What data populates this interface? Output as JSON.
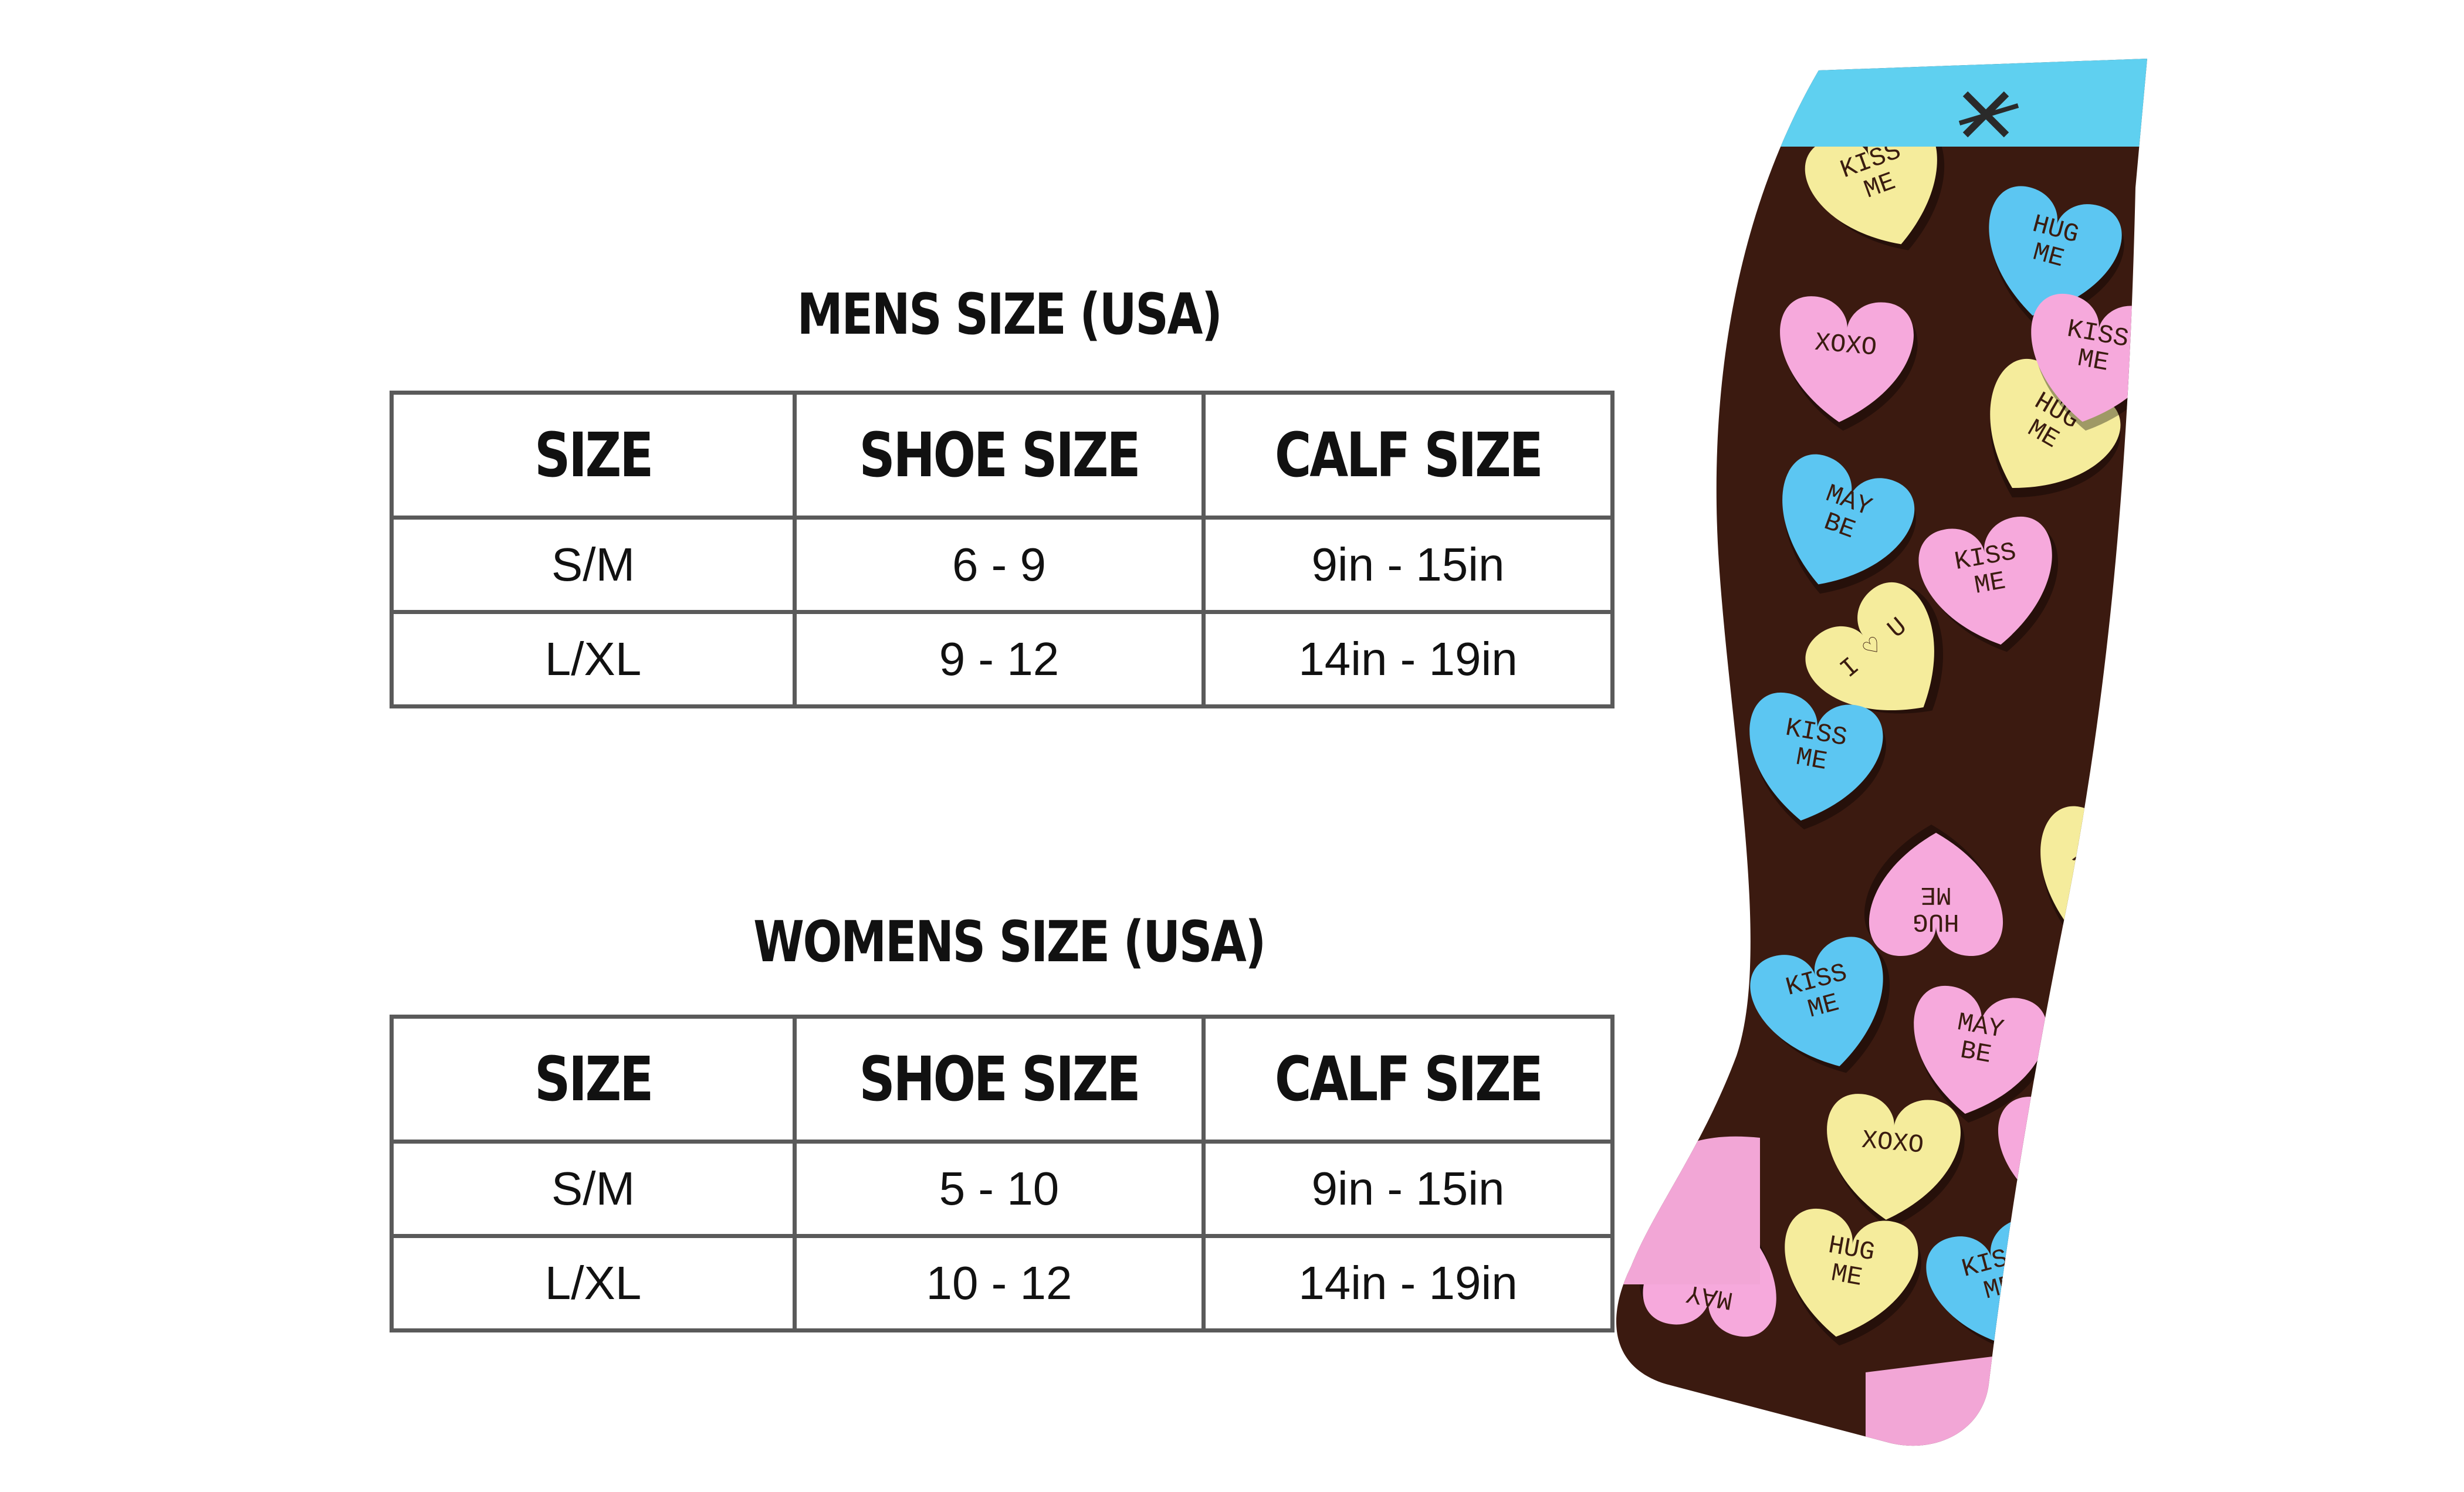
{
  "mens": {
    "title": "MENS SIZE (USA)",
    "headers": [
      "SIZE",
      "SHOE SIZE",
      "CALF SIZE"
    ],
    "rows": [
      [
        "S/M",
        "6 - 9",
        "9in - 15in"
      ],
      [
        "L/XL",
        "9 - 12",
        "14in - 19in"
      ]
    ]
  },
  "womens": {
    "title": "WOMENS SIZE (USA)",
    "headers": [
      "SIZE",
      "SHOE SIZE",
      "CALF SIZE"
    ],
    "rows": [
      [
        "S/M",
        "5 - 10",
        "9in - 15in"
      ],
      [
        "L/XL",
        "10 - 12",
        "14in - 19in"
      ]
    ]
  },
  "sock": {
    "heart_texts": [
      "KISS ME",
      "HUG ME",
      "XOXO",
      "MAY BE",
      "I ♡ U"
    ],
    "colors": {
      "cuff": "#5fd0f0",
      "base": "#3b1a10",
      "toe_heel": "#f2a6d6",
      "pink_heart": "#f6a9dc",
      "blue_heart": "#5cc6f2",
      "yellow_heart": "#f5ec9c"
    }
  }
}
